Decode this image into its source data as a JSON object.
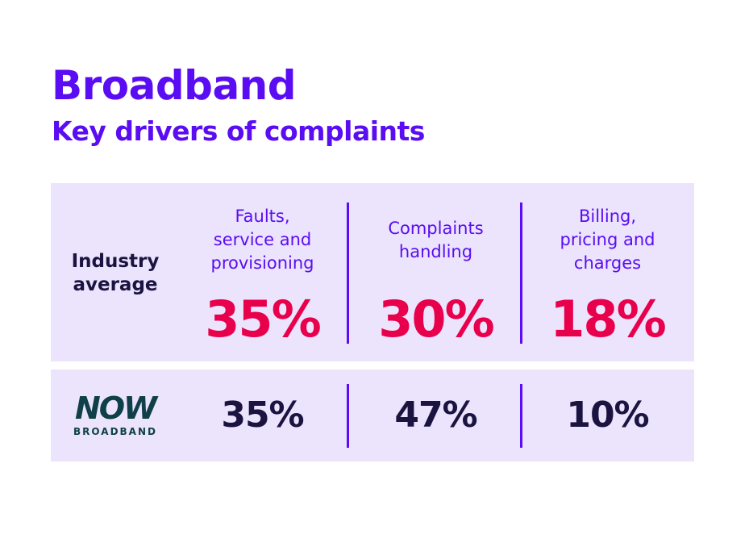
{
  "title": "Broadband",
  "subtitle": "Key drivers of complaints",
  "colors": {
    "purple": "#5a0df2",
    "pink": "#e8004c",
    "navy": "#1c1440",
    "panel": "#ebe4fc",
    "now_teal": "#0f3f48"
  },
  "chart_data": {
    "type": "table",
    "title": "Broadband",
    "subtitle": "Key drivers of complaints",
    "categories": [
      "Faults, service and provisioning",
      "Complaints handling",
      "Billing, pricing and charges"
    ],
    "series": [
      {
        "name": "Industry average",
        "values": [
          35,
          30,
          18
        ],
        "labels": [
          "35%",
          "30%",
          "18%"
        ]
      },
      {
        "name": "NOW BROADBAND",
        "values": [
          35,
          47,
          10
        ],
        "labels": [
          "35%",
          "47%",
          "10%"
        ]
      }
    ],
    "category_lines": [
      [
        "Faults,",
        "service and",
        "provisioning"
      ],
      [
        "Complaints",
        "handling"
      ],
      [
        "Billing,",
        "pricing and",
        "charges"
      ]
    ],
    "row_label_lines": [
      "Industry",
      "average"
    ],
    "logo": {
      "word": "NOW",
      "tagline": "BROADBAND"
    }
  }
}
